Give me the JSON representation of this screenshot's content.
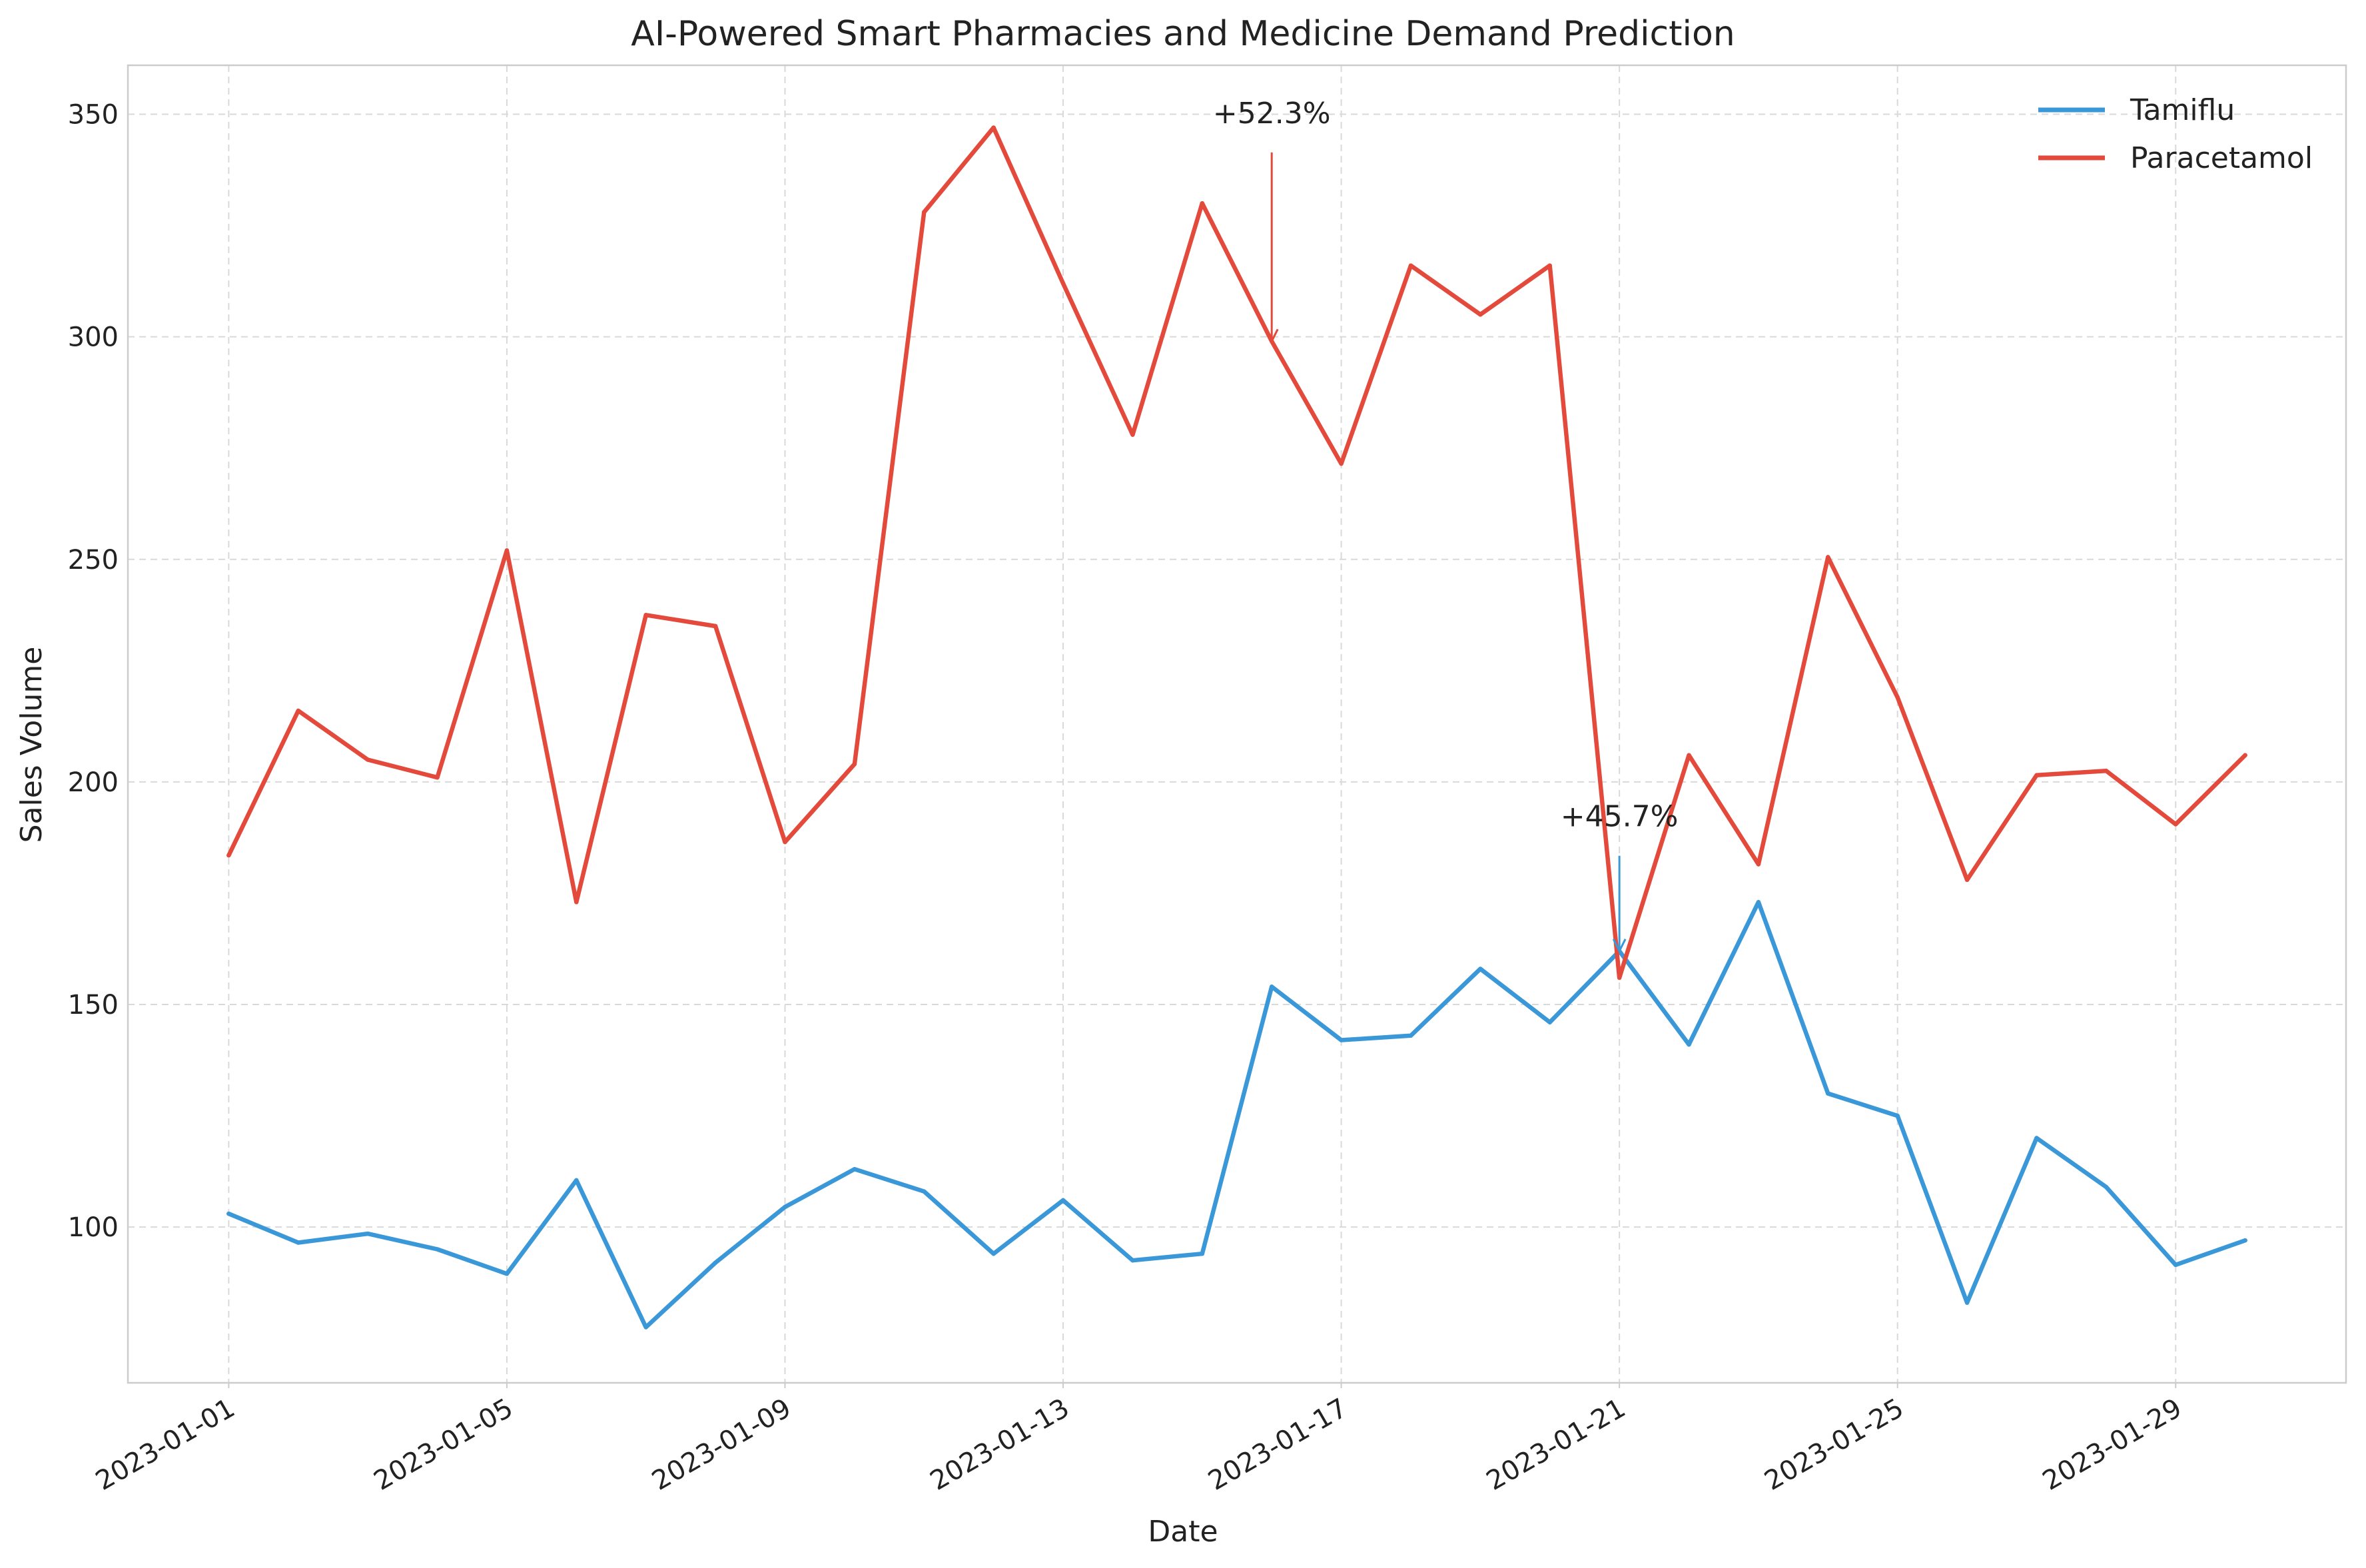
{
  "chart_data": {
    "type": "line",
    "title": "AI-Powered Smart Pharmacies and Medicine Demand Prediction",
    "xlabel": "Date",
    "ylabel": "Sales Volume",
    "x": [
      "2023-01-01",
      "2023-01-02",
      "2023-01-03",
      "2023-01-04",
      "2023-01-05",
      "2023-01-06",
      "2023-01-07",
      "2023-01-08",
      "2023-01-09",
      "2023-01-10",
      "2023-01-11",
      "2023-01-12",
      "2023-01-13",
      "2023-01-14",
      "2023-01-15",
      "2023-01-16",
      "2023-01-17",
      "2023-01-18",
      "2023-01-19",
      "2023-01-20",
      "2023-01-21",
      "2023-01-22",
      "2023-01-23",
      "2023-01-24",
      "2023-01-25",
      "2023-01-26",
      "2023-01-27",
      "2023-01-28",
      "2023-01-29",
      "2023-01-30"
    ],
    "xticks": [
      "2023-01-01",
      "2023-01-05",
      "2023-01-09",
      "2023-01-13",
      "2023-01-17",
      "2023-01-21",
      "2023-01-25",
      "2023-01-29"
    ],
    "yticks": [
      100,
      150,
      200,
      250,
      300,
      350
    ],
    "xlim": [
      "2022-12-30.55",
      "2023-01-31.45"
    ],
    "ylim": [
      65,
      361
    ],
    "grid": true,
    "legend_position": "top-right",
    "series": [
      {
        "name": "Tamiflu",
        "color": "#3a98d8",
        "values": [
          103,
          96.5,
          98.5,
          95,
          89.5,
          110.5,
          77.5,
          92,
          104.5,
          113,
          108,
          94,
          106,
          92.5,
          94,
          154,
          142,
          143,
          158,
          146,
          162,
          141,
          173,
          130,
          125,
          83,
          120,
          109,
          91.5,
          97
        ]
      },
      {
        "name": "Paracetamol",
        "color": "#e34a3c",
        "values": [
          183.5,
          216,
          205,
          201,
          252,
          173,
          237.5,
          235,
          186.5,
          204,
          328,
          347,
          312,
          278,
          330,
          299,
          271.5,
          316,
          305,
          316,
          156,
          206,
          181.5,
          250.5,
          219,
          178,
          201.5,
          202.5,
          190.5,
          206
        ]
      }
    ],
    "annotations": [
      {
        "text": "+52.3%",
        "series": "Paracetamol",
        "x": "2023-01-16",
        "y": 299,
        "text_y": 348,
        "color": "#e34a3c"
      },
      {
        "text": "+45.7%",
        "series": "Tamiflu",
        "x": "2023-01-21",
        "y": 162,
        "text_y": 190,
        "color": "#3a98d8"
      }
    ]
  }
}
